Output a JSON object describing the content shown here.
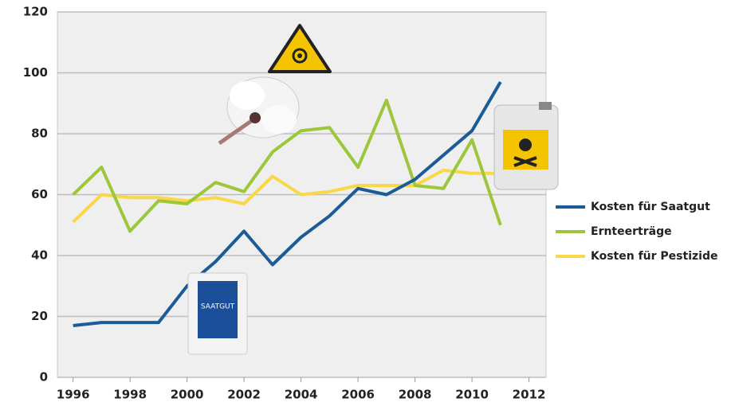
{
  "chart_data": {
    "type": "line",
    "x": [
      1996,
      1997,
      1998,
      1999,
      2000,
      2001,
      2002,
      2003,
      2004,
      2005,
      2006,
      2007,
      2008,
      2009,
      2010,
      2011
    ],
    "series": [
      {
        "name": "Kosten für Saatgut",
        "color": "#1b5b97",
        "values": [
          17,
          18,
          18,
          18,
          30,
          38,
          48,
          37,
          46,
          53,
          62,
          60,
          65,
          73,
          81,
          97
        ]
      },
      {
        "name": "Ernteerträge",
        "color": "#9cc73b",
        "values": [
          60,
          69,
          48,
          58,
          57,
          64,
          61,
          74,
          81,
          82,
          69,
          91,
          63,
          62,
          78,
          50
        ]
      },
      {
        "name": "Kosten für Pestizide",
        "color": "#f8d846",
        "values": [
          51,
          60,
          59,
          59,
          58,
          59,
          57,
          66,
          60,
          61,
          63,
          63,
          63,
          68,
          67,
          67
        ]
      }
    ],
    "xlim": [
      1995.45,
      2012.6
    ],
    "xticks": [
      1996,
      1998,
      2000,
      2002,
      2004,
      2006,
      2008,
      2010,
      2012
    ],
    "ylim": [
      0,
      120
    ],
    "yticks": [
      0,
      20,
      40,
      60,
      80,
      100,
      120
    ],
    "grid": true,
    "legend": "right",
    "annotations": [
      "SAATGUT"
    ]
  }
}
